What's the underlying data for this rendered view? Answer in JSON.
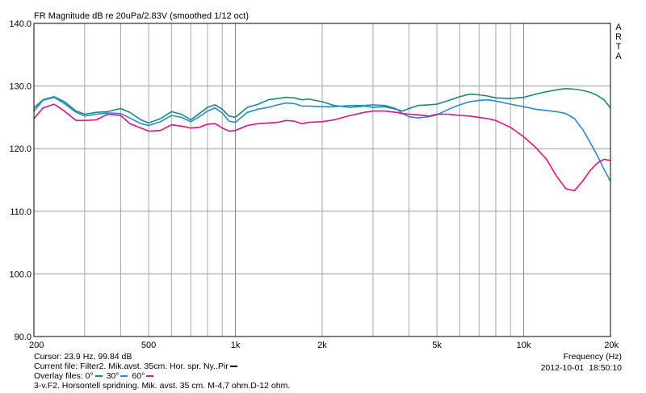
{
  "header": {
    "title": "FR Magnitude dB re 20uPa/2.83V  (smoothed 1/12 oct)"
  },
  "watermark": "A\nR\nT\nA",
  "chart_data": {
    "type": "line",
    "title": "FR Magnitude dB re 20uPa/2.83V  (smoothed 1/12 oct)",
    "xlabel": "Frequency (Hz)",
    "ylabel": "",
    "x_scale": "log",
    "xlim": [
      200,
      20000
    ],
    "ylim": [
      90,
      140
    ],
    "grid": true,
    "x_tick_labels": [
      {
        "x": 200,
        "label": "200"
      },
      {
        "x": 500,
        "label": "500"
      },
      {
        "x": 1000,
        "label": "1k"
      },
      {
        "x": 2000,
        "label": "2k"
      },
      {
        "x": 5000,
        "label": "5k"
      },
      {
        "x": 10000,
        "label": "10k"
      },
      {
        "x": 20000,
        "label": "20k"
      }
    ],
    "y_tick_labels": [
      {
        "y": 140,
        "label": "140.0"
      },
      {
        "y": 130,
        "label": "130.0"
      },
      {
        "y": 120,
        "label": "120.0"
      },
      {
        "y": 110,
        "label": "110.0"
      },
      {
        "y": 100,
        "label": "100.0"
      },
      {
        "y": 90,
        "label": "90.0"
      }
    ],
    "series": [
      {
        "name": "0°",
        "color": "#1a8a78",
        "x": [
          200,
          215,
          235,
          255,
          280,
          300,
          330,
          360,
          400,
          430,
          470,
          500,
          550,
          600,
          650,
          700,
          750,
          800,
          850,
          900,
          950,
          1000,
          1100,
          1200,
          1300,
          1400,
          1500,
          1600,
          1700,
          1800,
          2000,
          2200,
          2500,
          2800,
          3000,
          3300,
          3600,
          3800,
          4000,
          4300,
          4700,
          5000,
          5500,
          6000,
          6500,
          7000,
          7500,
          8000,
          9000,
          10000,
          11000,
          12000,
          13000,
          14000,
          15000,
          16000,
          17000,
          18000,
          19000,
          20000
        ],
        "y": [
          126.5,
          127.8,
          128.3,
          127.5,
          126.0,
          125.5,
          125.8,
          125.9,
          126.4,
          125.8,
          124.6,
          124.1,
          124.8,
          125.9,
          125.5,
          124.6,
          125.6,
          126.6,
          127.0,
          126.3,
          125.2,
          125.0,
          126.6,
          127.1,
          127.8,
          128.0,
          128.2,
          128.1,
          127.8,
          127.9,
          127.5,
          126.9,
          126.6,
          126.8,
          126.6,
          126.7,
          126.3,
          126.0,
          126.4,
          126.9,
          127.0,
          127.1,
          127.7,
          128.3,
          128.7,
          128.6,
          128.4,
          128.1,
          128.0,
          128.2,
          128.7,
          129.1,
          129.4,
          129.6,
          129.5,
          129.3,
          129.0,
          128.5,
          127.8,
          126.5
        ]
      },
      {
        "name": "30°",
        "color": "#2b87d8",
        "x": [
          200,
          215,
          235,
          255,
          280,
          300,
          330,
          360,
          400,
          430,
          470,
          500,
          550,
          600,
          650,
          700,
          750,
          800,
          850,
          900,
          950,
          1000,
          1100,
          1200,
          1300,
          1400,
          1500,
          1600,
          1700,
          1800,
          2000,
          2200,
          2500,
          2800,
          3000,
          3300,
          3600,
          3800,
          4000,
          4300,
          4700,
          5000,
          5500,
          6000,
          6500,
          7000,
          7500,
          8000,
          9000,
          10000,
          11000,
          12000,
          13000,
          14000,
          15000,
          16000,
          17000,
          18000,
          19000,
          20000
        ],
        "y": [
          126.0,
          127.7,
          128.2,
          127.2,
          125.8,
          125.2,
          125.5,
          125.7,
          125.6,
          124.9,
          124.0,
          123.7,
          124.3,
          125.3,
          125.0,
          124.3,
          125.1,
          126.0,
          126.5,
          125.7,
          124.4,
          124.2,
          125.8,
          126.3,
          126.6,
          127.0,
          127.3,
          127.2,
          126.8,
          126.8,
          126.7,
          126.7,
          126.9,
          126.9,
          127.0,
          126.9,
          126.4,
          125.6,
          125.1,
          124.9,
          125.1,
          125.4,
          126.3,
          127.0,
          127.5,
          127.7,
          127.8,
          127.6,
          127.1,
          126.7,
          126.3,
          126.1,
          125.9,
          125.6,
          124.8,
          123.1,
          121.0,
          118.9,
          116.7,
          114.8
        ]
      },
      {
        "name": "60°",
        "color": "#e0147e",
        "x": [
          200,
          215,
          235,
          255,
          280,
          300,
          330,
          360,
          400,
          430,
          470,
          500,
          550,
          600,
          650,
          700,
          750,
          800,
          850,
          900,
          950,
          1000,
          1100,
          1200,
          1300,
          1400,
          1500,
          1600,
          1700,
          1800,
          2000,
          2200,
          2500,
          2800,
          3000,
          3300,
          3600,
          3800,
          4000,
          4300,
          4700,
          5000,
          5500,
          6000,
          6500,
          7000,
          7500,
          8000,
          9000,
          10000,
          11000,
          12000,
          13000,
          14000,
          15000,
          16000,
          17000,
          18000,
          19000,
          20000
        ],
        "y": [
          124.8,
          126.5,
          127.1,
          126.0,
          124.5,
          124.5,
          124.6,
          125.5,
          125.3,
          124.0,
          123.3,
          122.8,
          122.9,
          123.8,
          123.6,
          123.3,
          123.4,
          123.9,
          124.0,
          123.3,
          122.8,
          122.9,
          123.7,
          124.0,
          124.1,
          124.2,
          124.5,
          124.4,
          124.0,
          124.2,
          124.3,
          124.6,
          125.3,
          125.8,
          126.0,
          126.0,
          125.8,
          125.6,
          125.5,
          125.4,
          125.2,
          125.5,
          125.5,
          125.3,
          125.2,
          125.0,
          124.8,
          124.5,
          123.4,
          121.9,
          120.2,
          118.3,
          115.6,
          113.6,
          113.3,
          114.8,
          116.5,
          117.7,
          118.3,
          118.1
        ]
      }
    ]
  },
  "footer": {
    "cursor": "Cursor:  23.9 Hz, 99.84 dB",
    "current_file": "Current file:  Filter2. Mik.avst. 35cm. Hor. spr. Ny..Pir",
    "overlay_label": "Overlay files:",
    "overlay_items": [
      "0°",
      "30°",
      "60°"
    ],
    "description": "3-v.F2. Horsontell spridning. Mik. avst. 35 cm. M-4,7 ohm.D-12 ohm.",
    "xlabel": "Frequency (Hz)",
    "date": "2012-10-01",
    "time": "18:50:10",
    "current_color": "#000000"
  }
}
